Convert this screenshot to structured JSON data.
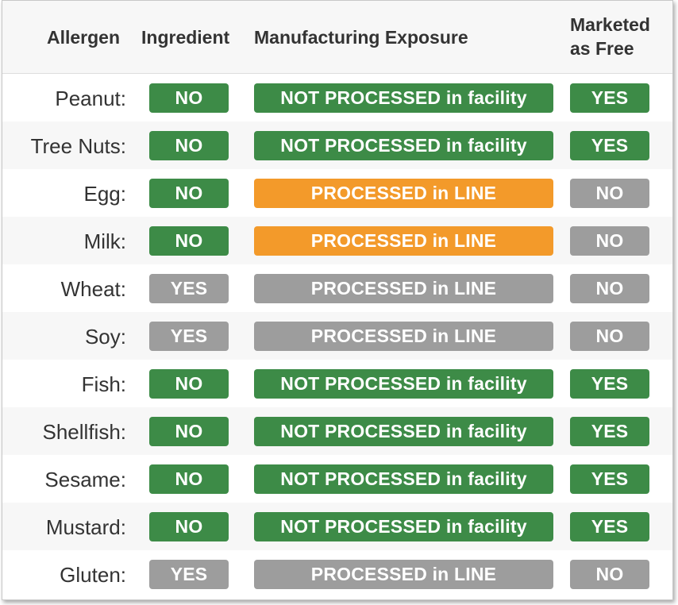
{
  "header": {
    "allergen": "Allergen",
    "ingredient": "Ingredient",
    "exposure": "Manufacturing Exposure",
    "marketed_line1": "Marketed",
    "marketed_line2": "as Free"
  },
  "colors": {
    "safe": "#3d8b47",
    "warning": "#f39a2a",
    "neutral": "#9d9d9d"
  },
  "rows": [
    {
      "allergen": "Peanut:",
      "ingredient": "NO",
      "ingredient_status": "green",
      "exposure": "NOT PROCESSED in facility",
      "exposure_status": "green",
      "marketed": "YES",
      "marketed_status": "green"
    },
    {
      "allergen": "Tree Nuts:",
      "ingredient": "NO",
      "ingredient_status": "green",
      "exposure": "NOT PROCESSED in facility",
      "exposure_status": "green",
      "marketed": "YES",
      "marketed_status": "green"
    },
    {
      "allergen": "Egg:",
      "ingredient": "NO",
      "ingredient_status": "green",
      "exposure": "PROCESSED in LINE",
      "exposure_status": "orange",
      "marketed": "NO",
      "marketed_status": "gray"
    },
    {
      "allergen": "Milk:",
      "ingredient": "NO",
      "ingredient_status": "green",
      "exposure": "PROCESSED in LINE",
      "exposure_status": "orange",
      "marketed": "NO",
      "marketed_status": "gray"
    },
    {
      "allergen": "Wheat:",
      "ingredient": "YES",
      "ingredient_status": "gray",
      "exposure": "PROCESSED in LINE",
      "exposure_status": "gray",
      "marketed": "NO",
      "marketed_status": "gray"
    },
    {
      "allergen": "Soy:",
      "ingredient": "YES",
      "ingredient_status": "gray",
      "exposure": "PROCESSED in LINE",
      "exposure_status": "gray",
      "marketed": "NO",
      "marketed_status": "gray"
    },
    {
      "allergen": "Fish:",
      "ingredient": "NO",
      "ingredient_status": "green",
      "exposure": "NOT PROCESSED in facility",
      "exposure_status": "green",
      "marketed": "YES",
      "marketed_status": "green"
    },
    {
      "allergen": "Shellfish:",
      "ingredient": "NO",
      "ingredient_status": "green",
      "exposure": "NOT PROCESSED in facility",
      "exposure_status": "green",
      "marketed": "YES",
      "marketed_status": "green"
    },
    {
      "allergen": "Sesame:",
      "ingredient": "NO",
      "ingredient_status": "green",
      "exposure": "NOT PROCESSED in facility",
      "exposure_status": "green",
      "marketed": "YES",
      "marketed_status": "green"
    },
    {
      "allergen": "Mustard:",
      "ingredient": "NO",
      "ingredient_status": "green",
      "exposure": "NOT PROCESSED in facility",
      "exposure_status": "green",
      "marketed": "YES",
      "marketed_status": "green"
    },
    {
      "allergen": "Gluten:",
      "ingredient": "YES",
      "ingredient_status": "gray",
      "exposure": "PROCESSED in LINE",
      "exposure_status": "gray",
      "marketed": "NO",
      "marketed_status": "gray"
    }
  ]
}
